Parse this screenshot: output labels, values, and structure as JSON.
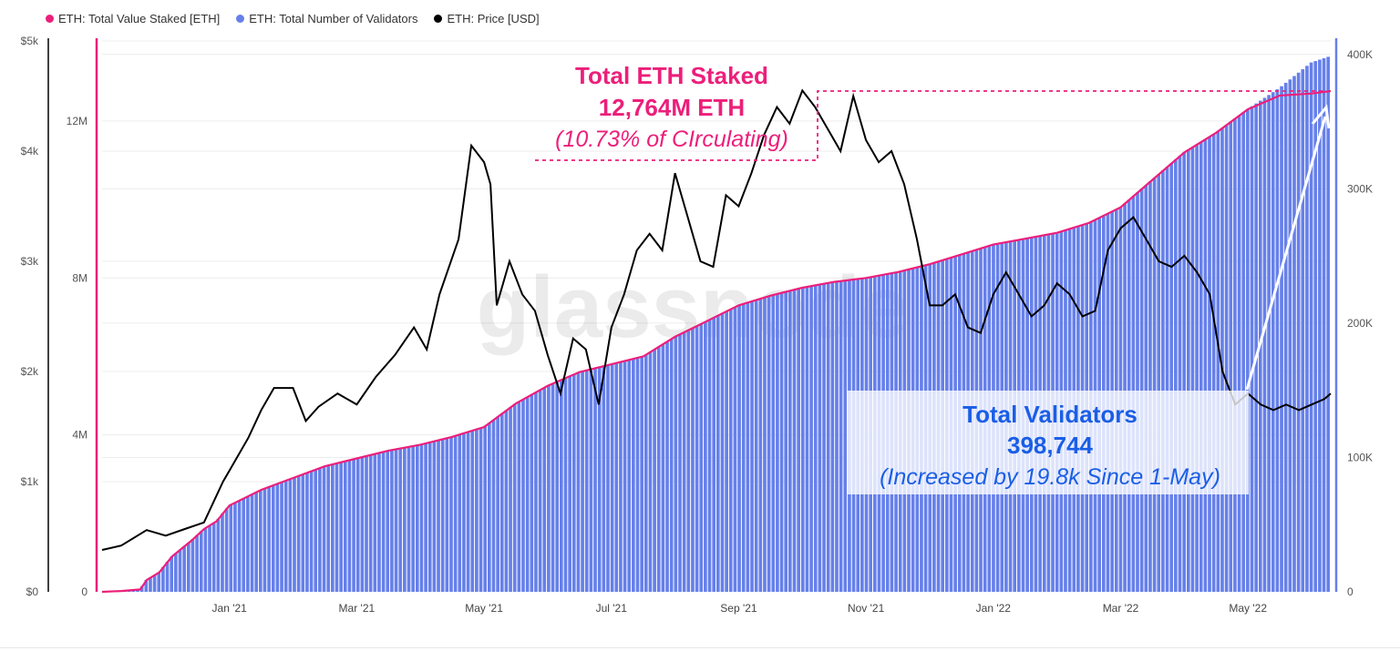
{
  "legend": [
    {
      "label": "ETH: Total Value Staked [ETH]",
      "color": "#ec1f7a"
    },
    {
      "label": "ETH: Total Number of Validators",
      "color": "#6680ea"
    },
    {
      "label": "ETH: Price [USD]",
      "color": "#000000"
    }
  ],
  "watermark": "glassnode",
  "annotations": {
    "staked": {
      "title": "Total ETH Staked",
      "value": "12,764M ETH",
      "note": "(10.73% of CIrculating)",
      "color": "#ec1f7a"
    },
    "validators": {
      "title": "Total Validators",
      "value": "398,744",
      "note": "(Increased by 19.8k Since 1-May)",
      "color": "#1a5ee6"
    }
  },
  "chart_data": {
    "type": "line",
    "title": "",
    "x_axis": {
      "ticks": [
        "Jan '21",
        "Mar '21",
        "May '21",
        "Jul '21",
        "Sep '21",
        "Nov '21",
        "Jan '22",
        "Mar '22",
        "May '22"
      ],
      "tick_months": [
        2,
        4,
        6,
        8,
        10,
        12,
        14,
        16,
        18
      ],
      "range_months": [
        0,
        19.3
      ]
    },
    "y_axes": {
      "price": {
        "ticks": [
          "$0",
          "$1k",
          "$2k",
          "$3k",
          "$4k",
          "$5k"
        ],
        "tick_values": [
          0,
          1000,
          2000,
          3000,
          4000,
          5000
        ],
        "range": [
          0,
          5000
        ],
        "color": "#000000"
      },
      "staked": {
        "ticks": [
          "0",
          "4M",
          "8M",
          "12M"
        ],
        "tick_values": [
          0,
          4000000,
          8000000,
          12000000
        ],
        "range": [
          0,
          14040000
        ],
        "color": "#ec1f7a"
      },
      "validators": {
        "ticks": [
          "0",
          "100K",
          "200K",
          "300K",
          "400K"
        ],
        "tick_values": [
          0,
          100000,
          200000,
          300000,
          400000
        ],
        "range": [
          0,
          410000
        ],
        "color": "#6680ea"
      }
    },
    "series": [
      {
        "name": "ETH: Total Value Staked [ETH]",
        "color": "#ec1f7a",
        "axis": "staked",
        "x": [
          0,
          0.3,
          0.6,
          0.7,
          0.9,
          1.1,
          1.4,
          1.6,
          1.8,
          2.0,
          2.5,
          3.0,
          3.5,
          4.0,
          4.5,
          5.0,
          5.5,
          6.0,
          6.5,
          7.0,
          7.5,
          8.0,
          8.5,
          9.0,
          9.5,
          10.0,
          10.5,
          11.0,
          11.5,
          12.0,
          12.5,
          13.0,
          13.5,
          14.0,
          14.5,
          15.0,
          15.5,
          16.0,
          16.5,
          17.0,
          17.5,
          18.0,
          18.5,
          19.0,
          19.3
        ],
        "y": [
          0,
          20000,
          60000,
          300000,
          500000,
          900000,
          1300000,
          1600000,
          1800000,
          2200000,
          2600000,
          2900000,
          3200000,
          3400000,
          3600000,
          3750000,
          3950000,
          4200000,
          4800000,
          5250000,
          5600000,
          5800000,
          6000000,
          6500000,
          6900000,
          7300000,
          7550000,
          7750000,
          7900000,
          8000000,
          8150000,
          8350000,
          8600000,
          8850000,
          9000000,
          9150000,
          9400000,
          9800000,
          10500000,
          11200000,
          11700000,
          12300000,
          12650000,
          12700000,
          12764000
        ]
      },
      {
        "name": "ETH: Total Number of Validators",
        "color": "#6680ea",
        "axis": "validators",
        "x": [
          0,
          0.3,
          0.6,
          0.7,
          0.9,
          1.1,
          1.4,
          1.6,
          1.8,
          2.0,
          2.5,
          3.0,
          3.5,
          4.0,
          4.5,
          5.0,
          5.5,
          6.0,
          6.5,
          7.0,
          7.5,
          8.0,
          8.5,
          9.0,
          9.5,
          10.0,
          10.5,
          11.0,
          11.5,
          12.0,
          12.5,
          13.0,
          13.5,
          14.0,
          14.5,
          15.0,
          15.5,
          16.0,
          16.5,
          17.0,
          17.5,
          18.0,
          18.5,
          19.0,
          19.3
        ],
        "y": [
          0,
          600,
          1800,
          8800,
          14600,
          26300,
          37900,
          46700,
          52600,
          64200,
          75900,
          84600,
          93400,
          99200,
          105100,
          109500,
          115300,
          122600,
          140200,
          153300,
          163600,
          169400,
          175200,
          189800,
          201500,
          213200,
          220500,
          226300,
          230700,
          233600,
          238000,
          243800,
          251100,
          258400,
          262800,
          267200,
          274500,
          286200,
          306600,
          327100,
          341700,
          359200,
          375000,
          394000,
          398744
        ]
      },
      {
        "name": "ETH: Price [USD]",
        "color": "#000000",
        "axis": "price",
        "x": [
          0,
          0.3,
          0.7,
          1.0,
          1.3,
          1.6,
          1.9,
          2.1,
          2.3,
          2.5,
          2.7,
          3.0,
          3.2,
          3.4,
          3.7,
          4.0,
          4.3,
          4.6,
          4.9,
          5.1,
          5.3,
          5.6,
          5.8,
          6.0,
          6.1,
          6.2,
          6.4,
          6.6,
          6.8,
          7.0,
          7.2,
          7.4,
          7.6,
          7.8,
          8.0,
          8.2,
          8.4,
          8.6,
          8.8,
          9.0,
          9.2,
          9.4,
          9.6,
          9.8,
          10.0,
          10.2,
          10.4,
          10.6,
          10.8,
          11.0,
          11.2,
          11.4,
          11.6,
          11.8,
          12.0,
          12.2,
          12.4,
          12.6,
          12.8,
          13.0,
          13.2,
          13.4,
          13.6,
          13.8,
          14.0,
          14.2,
          14.4,
          14.6,
          14.8,
          15.0,
          15.2,
          15.4,
          15.6,
          15.8,
          16.0,
          16.2,
          16.4,
          16.6,
          16.8,
          17.0,
          17.2,
          17.4,
          17.6,
          17.8,
          18.0,
          18.2,
          18.4,
          18.6,
          18.8,
          19.0,
          19.2,
          19.3
        ],
        "y": [
          380,
          420,
          560,
          510,
          570,
          630,
          1000,
          1200,
          1400,
          1650,
          1850,
          1850,
          1550,
          1680,
          1800,
          1700,
          1950,
          2150,
          2400,
          2200,
          2700,
          3200,
          4050,
          3900,
          3700,
          2600,
          3000,
          2700,
          2550,
          2150,
          1800,
          2300,
          2200,
          1700,
          2400,
          2700,
          3100,
          3250,
          3100,
          3800,
          3400,
          3000,
          2950,
          3600,
          3500,
          3800,
          4150,
          4400,
          4250,
          4550,
          4400,
          4200,
          4000,
          4500,
          4100,
          3900,
          4000,
          3700,
          3200,
          2600,
          2600,
          2700,
          2400,
          2350,
          2700,
          2900,
          2700,
          2500,
          2600,
          2800,
          2700,
          2500,
          2550,
          3100,
          3300,
          3400,
          3200,
          3000,
          2950,
          3050,
          2900,
          2700,
          2000,
          1700,
          1800,
          1700,
          1650,
          1700,
          1650,
          1700,
          1750,
          1800
        ]
      }
    ]
  }
}
